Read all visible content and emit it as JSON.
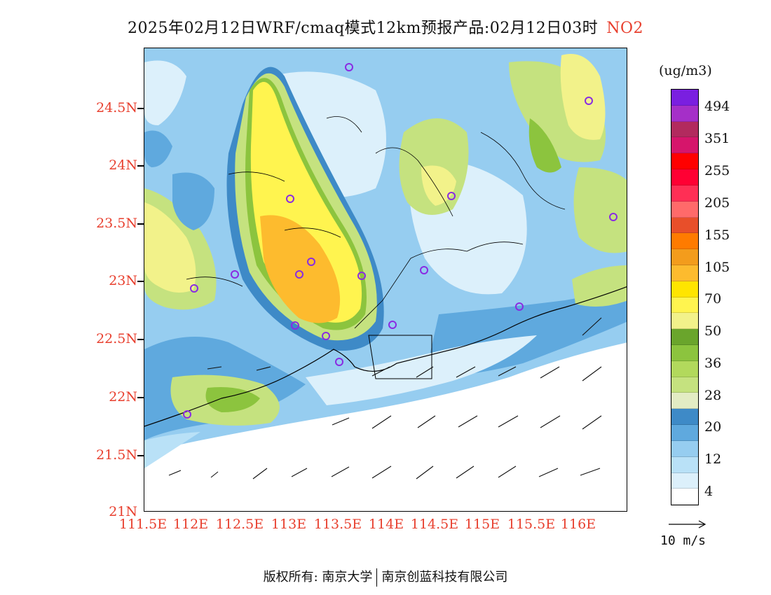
{
  "header": {
    "title": "2025年02月12日WRF/cmaq模式12km预报产品:02月12日03时",
    "species": "NO2"
  },
  "map": {
    "y_tick_labels": [
      "24.5N",
      "24N",
      "23.5N",
      "23N",
      "22.5N",
      "22N",
      "21.5N",
      "21N"
    ],
    "x_tick_labels": [
      "111.5E",
      "112E",
      "112.5E",
      "113E",
      "113.5E",
      "114E",
      "114.5E",
      "115E",
      "115.5E",
      "116E"
    ],
    "lat_range": [
      21,
      25
    ],
    "lon_range": [
      111.5,
      116.7
    ],
    "station_marker_color": "#8a2be2",
    "land_boundary_color": "#000000"
  },
  "colorbar": {
    "unit": "(ug/m3)",
    "colors": [
      "#ffffff",
      "#dcf0fb",
      "#b9e1f7",
      "#96cdf0",
      "#5fa9de",
      "#3e8ac7",
      "#e3ecc4",
      "#c5e27f",
      "#b2d95c",
      "#8cc43e",
      "#6aa52c",
      "#f2f28a",
      "#fff44f",
      "#ffe500",
      "#fdbb2e",
      "#f39c1c",
      "#ff7b00",
      "#e84f2a",
      "#ff6a6a",
      "#ff2f55",
      "#ff0033",
      "#ff0000",
      "#d6156b",
      "#b22a5e",
      "#a52fc8",
      "#7a1fe0"
    ],
    "labels": [
      "4",
      "12",
      "20",
      "28",
      "36",
      "50",
      "70",
      "105",
      "155",
      "205",
      "255",
      "351",
      "494"
    ]
  },
  "wind_legend": {
    "label": "10 m/s"
  },
  "footer": {
    "copyright_left": "版权所有: 南京大学",
    "copyright_right": "南京创蓝科技有限公司"
  }
}
